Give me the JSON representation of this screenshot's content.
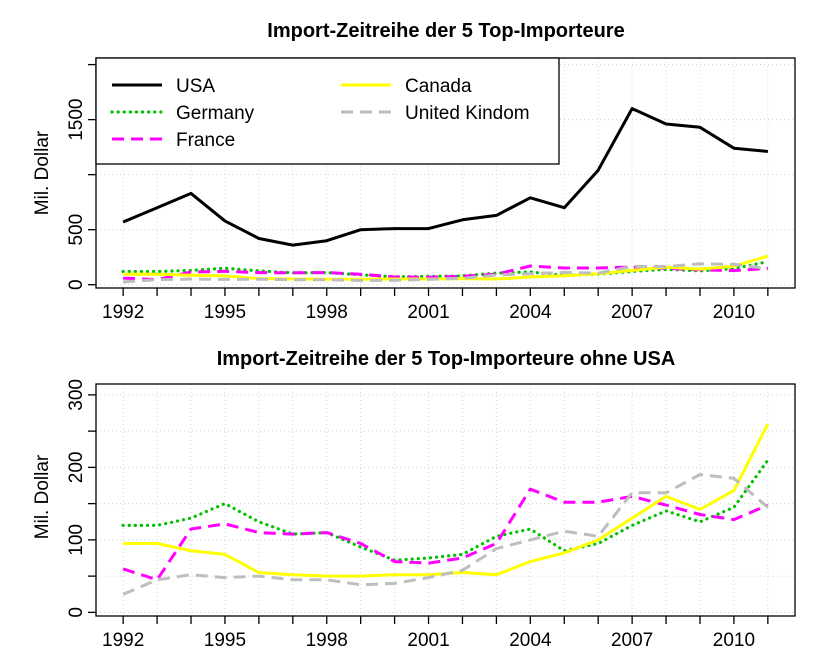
{
  "chart_data": [
    {
      "type": "line",
      "title": "Import-Zeitreihe der 5 Top-Importeure",
      "xlabel": "",
      "ylabel": "Mil. Dollar",
      "xlim": [
        1991.2,
        2011.8
      ],
      "ylim": [
        -30,
        2060
      ],
      "xticks": [
        1992,
        1993,
        1994,
        1995,
        1996,
        1997,
        1998,
        1999,
        2000,
        2001,
        2002,
        2003,
        2004,
        2005,
        2006,
        2007,
        2008,
        2009,
        2010,
        2011
      ],
      "xtick_labels": [
        "1992",
        "",
        "",
        "1995",
        "",
        "",
        "1998",
        "",
        "",
        "2001",
        "",
        "",
        "2004",
        "",
        "",
        "2007",
        "",
        "",
        "2010",
        ""
      ],
      "yticks": [
        0,
        500,
        1000,
        1500,
        2000
      ],
      "ytick_labels": [
        "0",
        "500",
        "",
        "1500",
        ""
      ],
      "grid": true,
      "legend": "top-left",
      "x": [
        1992,
        1993,
        1994,
        1995,
        1996,
        1997,
        1998,
        1999,
        2000,
        2001,
        2002,
        2003,
        2004,
        2005,
        2006,
        2007,
        2008,
        2009,
        2010,
        2011
      ],
      "series": [
        {
          "name": "USA",
          "color": "#000000",
          "dash": "solid",
          "values": [
            570,
            700,
            830,
            580,
            420,
            360,
            400,
            500,
            510,
            510,
            590,
            630,
            790,
            700,
            1040,
            1600,
            1460,
            1430,
            1240,
            1210
          ]
        },
        {
          "name": "Germany",
          "color": "#00c000",
          "dash": "dotted",
          "values": [
            120,
            120,
            130,
            150,
            125,
            108,
            110,
            90,
            72,
            75,
            80,
            105,
            115,
            85,
            95,
            120,
            140,
            125,
            145,
            210
          ]
        },
        {
          "name": "France",
          "color": "#ff00ff",
          "dash": "dashed",
          "values": [
            60,
            45,
            115,
            122,
            110,
            108,
            110,
            95,
            70,
            68,
            75,
            95,
            170,
            152,
            152,
            160,
            148,
            135,
            128,
            148
          ]
        },
        {
          "name": "Canada",
          "color": "#ffff00",
          "dash": "solid",
          "values": [
            95,
            95,
            85,
            80,
            55,
            52,
            50,
            50,
            52,
            52,
            55,
            52,
            70,
            82,
            100,
            130,
            160,
            142,
            168,
            260
          ]
        },
        {
          "name": "United Kindom",
          "color": "#bebebe",
          "dash": "dashed",
          "values": [
            25,
            45,
            52,
            48,
            50,
            45,
            45,
            38,
            40,
            48,
            58,
            88,
            100,
            112,
            105,
            165,
            165,
            190,
            185,
            145
          ]
        }
      ]
    },
    {
      "type": "line",
      "title": "Import-Zeitreihe der 5 Top-Importeure ohne USA",
      "xlabel": "",
      "ylabel": "Mil. Dollar",
      "xlim": [
        1991.2,
        2011.8
      ],
      "ylim": [
        -5,
        315
      ],
      "xticks": [
        1992,
        1993,
        1994,
        1995,
        1996,
        1997,
        1998,
        1999,
        2000,
        2001,
        2002,
        2003,
        2004,
        2005,
        2006,
        2007,
        2008,
        2009,
        2010,
        2011
      ],
      "xtick_labels": [
        "1992",
        "",
        "",
        "1995",
        "",
        "",
        "1998",
        "",
        "",
        "2001",
        "",
        "",
        "2004",
        "",
        "",
        "2007",
        "",
        "",
        "2010",
        ""
      ],
      "yticks": [
        0,
        50,
        100,
        150,
        200,
        250,
        300
      ],
      "ytick_labels": [
        "0",
        "",
        "100",
        "",
        "200",
        "",
        "300"
      ],
      "grid": true,
      "x": [
        1992,
        1993,
        1994,
        1995,
        1996,
        1997,
        1998,
        1999,
        2000,
        2001,
        2002,
        2003,
        2004,
        2005,
        2006,
        2007,
        2008,
        2009,
        2010,
        2011
      ],
      "series": [
        {
          "name": "Germany",
          "color": "#00c000",
          "dash": "dotted",
          "values": [
            120,
            120,
            130,
            150,
            125,
            108,
            110,
            90,
            72,
            75,
            80,
            105,
            115,
            85,
            95,
            120,
            140,
            125,
            145,
            210
          ]
        },
        {
          "name": "France",
          "color": "#ff00ff",
          "dash": "dashed",
          "values": [
            60,
            45,
            115,
            122,
            110,
            108,
            110,
            95,
            70,
            68,
            75,
            95,
            170,
            152,
            152,
            160,
            148,
            135,
            128,
            148
          ]
        },
        {
          "name": "Canada",
          "color": "#ffff00",
          "dash": "solid",
          "values": [
            95,
            95,
            85,
            80,
            55,
            52,
            50,
            50,
            52,
            52,
            55,
            52,
            70,
            82,
            100,
            130,
            160,
            142,
            168,
            260
          ]
        },
        {
          "name": "United Kindom",
          "color": "#bebebe",
          "dash": "dashed",
          "values": [
            25,
            45,
            52,
            48,
            50,
            45,
            45,
            38,
            40,
            48,
            58,
            88,
            100,
            112,
            105,
            165,
            165,
            190,
            185,
            145
          ]
        }
      ]
    }
  ]
}
